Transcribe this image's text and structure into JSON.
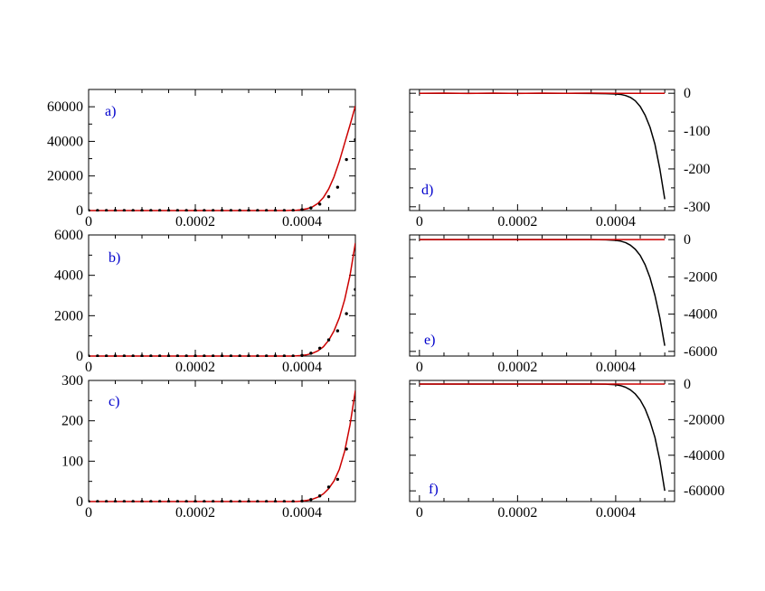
{
  "colors": {
    "axis": "#000000",
    "series_red": "#cc0000",
    "series_black": "#000000",
    "panel_label": "#0000cc"
  },
  "chart_data": [
    {
      "panel": "a)",
      "type": "line",
      "xlim": [
        0,
        0.0005
      ],
      "ylim": [
        0,
        70000
      ],
      "x_ticks": [
        0,
        0.0002,
        0.0004
      ],
      "x_tick_labels": [
        "0",
        "0.0002",
        "0.0004"
      ],
      "y_ticks": [
        0,
        20000,
        40000,
        60000
      ],
      "y_tick_labels": [
        "0",
        "20000",
        "40000",
        "60000"
      ],
      "y_axis_side": "left",
      "grid": false,
      "series": [
        {
          "style": "line",
          "color": "#cc0000",
          "x": [
            0,
            2e-05,
            4e-05,
            6e-05,
            8e-05,
            0.0001,
            0.00012,
            0.00014,
            0.00016,
            0.00018,
            0.0002,
            0.00022,
            0.00024,
            0.00026,
            0.00028,
            0.0003,
            0.00032,
            0.00034,
            0.00036,
            0.00037,
            0.00038,
            0.00039,
            0.0004,
            0.00041,
            0.00042,
            0.00043,
            0.00044,
            0.00045,
            0.00046,
            0.00047,
            0.00048,
            0.00049,
            0.0005
          ],
          "y": [
            0,
            0,
            0,
            0,
            0,
            0,
            0,
            0,
            0,
            0,
            0,
            0,
            0,
            0,
            0,
            0,
            0,
            0,
            0,
            0,
            100,
            200,
            500,
            1100,
            2200,
            4200,
            7500,
            12500,
            19500,
            28500,
            39000,
            49500,
            60500
          ]
        },
        {
          "style": "dots",
          "color": "#000000",
          "x": [
            0,
            1.67e-05,
            3.33e-05,
            5e-05,
            6.67e-05,
            8.33e-05,
            0.0001,
            0.0001167,
            0.0001333,
            0.00015,
            0.0001667,
            0.0001833,
            0.0002,
            0.0002167,
            0.0002333,
            0.00025,
            0.0002667,
            0.0002833,
            0.0003,
            0.0003167,
            0.0003333,
            0.00035,
            0.0003667,
            0.0003833,
            0.0004,
            0.0004167,
            0.0004333,
            0.00045,
            0.0004667,
            0.0004833,
            0.0005
          ],
          "y": [
            0,
            0,
            0,
            0,
            0,
            0,
            0,
            0,
            0,
            0,
            0,
            0,
            0,
            0,
            0,
            0,
            0,
            0,
            0,
            0,
            0,
            0,
            0,
            100,
            500,
            1500,
            3700,
            8000,
            13500,
            29500,
            41000
          ]
        }
      ]
    },
    {
      "panel": "b)",
      "type": "line",
      "xlim": [
        0,
        0.0005
      ],
      "ylim": [
        0,
        6000
      ],
      "x_ticks": [
        0,
        0.0002,
        0.0004
      ],
      "x_tick_labels": [
        "0",
        "0.0002",
        "0.0004"
      ],
      "y_ticks": [
        0,
        2000,
        4000,
        6000
      ],
      "y_tick_labels": [
        "0",
        "2000",
        "4000",
        "6000"
      ],
      "y_axis_side": "left",
      "grid": false,
      "series": [
        {
          "style": "line",
          "color": "#cc0000",
          "x": [
            0,
            2e-05,
            4e-05,
            6e-05,
            8e-05,
            0.0001,
            0.00012,
            0.00014,
            0.00016,
            0.00018,
            0.0002,
            0.00022,
            0.00024,
            0.00026,
            0.00028,
            0.0003,
            0.00032,
            0.00034,
            0.00036,
            0.00037,
            0.00038,
            0.00039,
            0.0004,
            0.00041,
            0.00042,
            0.00043,
            0.00044,
            0.00045,
            0.00046,
            0.00047,
            0.00048,
            0.00049,
            0.0005
          ],
          "y": [
            0,
            0,
            0,
            0,
            0,
            0,
            0,
            0,
            0,
            0,
            0,
            0,
            0,
            0,
            0,
            0,
            0,
            0,
            0,
            0,
            0,
            10,
            30,
            70,
            140,
            260,
            460,
            780,
            1250,
            1900,
            2800,
            4000,
            5600
          ]
        },
        {
          "style": "dots",
          "color": "#000000",
          "x": [
            0,
            1.67e-05,
            3.33e-05,
            5e-05,
            6.67e-05,
            8.33e-05,
            0.0001,
            0.0001167,
            0.0001333,
            0.00015,
            0.0001667,
            0.0001833,
            0.0002,
            0.0002167,
            0.0002333,
            0.00025,
            0.0002667,
            0.0002833,
            0.0003,
            0.0003167,
            0.0003333,
            0.00035,
            0.0003667,
            0.0003833,
            0.0004,
            0.0004167,
            0.0004333,
            0.00045,
            0.0004667,
            0.0004833,
            0.0005
          ],
          "y": [
            0,
            0,
            0,
            0,
            0,
            0,
            0,
            0,
            0,
            0,
            0,
            0,
            0,
            0,
            0,
            0,
            0,
            0,
            0,
            0,
            0,
            0,
            0,
            0,
            30,
            140,
            390,
            800,
            1250,
            2100,
            3300
          ]
        }
      ]
    },
    {
      "panel": "c)",
      "type": "line",
      "xlim": [
        0,
        0.0005
      ],
      "ylim": [
        0,
        300
      ],
      "x_ticks": [
        0,
        0.0002,
        0.0004
      ],
      "x_tick_labels": [
        "0",
        "0.0002",
        "0.0004"
      ],
      "y_ticks": [
        0,
        100,
        200,
        300
      ],
      "y_tick_labels": [
        "0",
        "100",
        "200",
        "300"
      ],
      "y_axis_side": "left",
      "grid": false,
      "series": [
        {
          "style": "line",
          "color": "#cc0000",
          "x": [
            0,
            2e-05,
            4e-05,
            6e-05,
            8e-05,
            0.0001,
            0.00012,
            0.00014,
            0.00016,
            0.00018,
            0.0002,
            0.00022,
            0.00024,
            0.00026,
            0.00028,
            0.0003,
            0.00032,
            0.00034,
            0.00036,
            0.00037,
            0.00038,
            0.00039,
            0.0004,
            0.00041,
            0.00042,
            0.00043,
            0.00044,
            0.00045,
            0.00046,
            0.00047,
            0.00048,
            0.00049,
            0.0005
          ],
          "y": [
            0,
            0,
            0,
            0,
            0,
            0,
            0,
            0,
            0,
            0,
            0,
            0,
            0,
            0,
            0,
            0,
            0,
            0,
            0,
            0,
            0,
            0,
            1,
            3,
            6,
            11,
            19,
            32,
            51,
            80,
            125,
            190,
            275
          ]
        },
        {
          "style": "dots",
          "color": "#000000",
          "x": [
            0,
            1.67e-05,
            3.33e-05,
            5e-05,
            6.67e-05,
            8.33e-05,
            0.0001,
            0.0001167,
            0.0001333,
            0.00015,
            0.0001667,
            0.0001833,
            0.0002,
            0.0002167,
            0.0002333,
            0.00025,
            0.0002667,
            0.0002833,
            0.0003,
            0.0003167,
            0.0003333,
            0.00035,
            0.0003667,
            0.0003833,
            0.0004,
            0.0004167,
            0.0004333,
            0.00045,
            0.0004667,
            0.0004833,
            0.0005
          ],
          "y": [
            0,
            0,
            0,
            0,
            0,
            0,
            0,
            0,
            0,
            0,
            0,
            0,
            0,
            0,
            0,
            0,
            0,
            0,
            0,
            0,
            0,
            0,
            0,
            0,
            1,
            5,
            14,
            36,
            55,
            130,
            225
          ]
        }
      ]
    },
    {
      "panel": "d)",
      "type": "line",
      "xlim": [
        -2e-05,
        0.00052
      ],
      "ylim": [
        -310,
        10
      ],
      "x_ticks": [
        0,
        0.0002,
        0.0004
      ],
      "x_tick_labels": [
        "0",
        "0.0002",
        "0.0004"
      ],
      "y_ticks": [
        0,
        -100,
        -200,
        -300
      ],
      "y_tick_labels": [
        "0",
        "-100",
        "-200",
        "-300"
      ],
      "y_axis_side": "right",
      "grid": false,
      "series": [
        {
          "style": "line",
          "color": "#000000",
          "x": [
            0,
            5e-05,
            0.0001,
            0.00015,
            0.0002,
            0.00025,
            0.0003,
            0.00035,
            0.00038,
            0.0004,
            0.00041,
            0.00042,
            0.00043,
            0.00044,
            0.00045,
            0.00046,
            0.00047,
            0.00048,
            0.00049,
            0.0005
          ],
          "y": [
            0,
            0,
            0,
            0,
            0,
            0,
            0,
            -0.5,
            -1,
            -2,
            -3,
            -6,
            -11,
            -20,
            -35,
            -58,
            -90,
            -135,
            -200,
            -280
          ]
        },
        {
          "style": "line",
          "color": "#cc0000",
          "x": [
            0,
            5e-05,
            0.0001,
            0.00015,
            0.0002,
            0.00025,
            0.0003,
            0.00035,
            0.0004,
            0.00045,
            0.0005
          ],
          "y": [
            0,
            0.5,
            -0.5,
            0.5,
            -0.5,
            0.5,
            0,
            0.5,
            0,
            0,
            0
          ]
        }
      ]
    },
    {
      "panel": "e)",
      "type": "line",
      "xlim": [
        -2e-05,
        0.00052
      ],
      "ylim": [
        -6250,
        250
      ],
      "x_ticks": [
        0,
        0.0002,
        0.0004
      ],
      "x_tick_labels": [
        "0",
        "0.0002",
        "0.0004"
      ],
      "y_ticks": [
        0,
        -2000,
        -4000,
        -6000
      ],
      "y_tick_labels": [
        "0",
        "-2000",
        "-4000",
        "-6000"
      ],
      "y_axis_side": "right",
      "grid": false,
      "series": [
        {
          "style": "line",
          "color": "#000000",
          "x": [
            0,
            5e-05,
            0.0001,
            0.00015,
            0.0002,
            0.00025,
            0.0003,
            0.00035,
            0.00038,
            0.0004,
            0.00041,
            0.00042,
            0.00043,
            0.00044,
            0.00045,
            0.00046,
            0.00047,
            0.00048,
            0.00049,
            0.0005
          ],
          "y": [
            0,
            0,
            0,
            0,
            0,
            0,
            0,
            0,
            -10,
            -40,
            -80,
            -160,
            -300,
            -520,
            -850,
            -1350,
            -2050,
            -3000,
            -4200,
            -5700
          ]
        },
        {
          "style": "line",
          "color": "#cc0000",
          "x": [
            0,
            0.0001,
            0.0002,
            0.0003,
            0.0004,
            0.0005
          ],
          "y": [
            0,
            0,
            0,
            0,
            0,
            0
          ]
        }
      ]
    },
    {
      "panel": "f)",
      "type": "line",
      "xlim": [
        -2e-05,
        0.00052
      ],
      "ylim": [
        -66000,
        2000
      ],
      "x_ticks": [
        0,
        0.0002,
        0.0004
      ],
      "x_tick_labels": [
        "0",
        "0.0002",
        "0.0004"
      ],
      "y_ticks": [
        0,
        -20000,
        -40000,
        -60000
      ],
      "y_tick_labels": [
        "0",
        "-20000",
        "-40000",
        "-60000"
      ],
      "y_axis_side": "right",
      "grid": false,
      "series": [
        {
          "style": "line",
          "color": "#000000",
          "x": [
            0,
            5e-05,
            0.0001,
            0.00015,
            0.0002,
            0.00025,
            0.0003,
            0.00035,
            0.00038,
            0.0004,
            0.00041,
            0.00042,
            0.00043,
            0.00044,
            0.00045,
            0.00046,
            0.00047,
            0.00048,
            0.00049,
            0.0005
          ],
          "y": [
            0,
            0,
            0,
            0,
            0,
            0,
            0,
            0,
            -100,
            -400,
            -900,
            -1800,
            -3300,
            -5600,
            -9000,
            -14000,
            -21000,
            -30000,
            -43000,
            -60000
          ]
        },
        {
          "style": "line",
          "color": "#cc0000",
          "x": [
            0,
            0.0001,
            0.0002,
            0.0003,
            0.0004,
            0.0005
          ],
          "y": [
            0,
            0,
            0,
            0,
            0,
            0
          ]
        }
      ]
    }
  ]
}
